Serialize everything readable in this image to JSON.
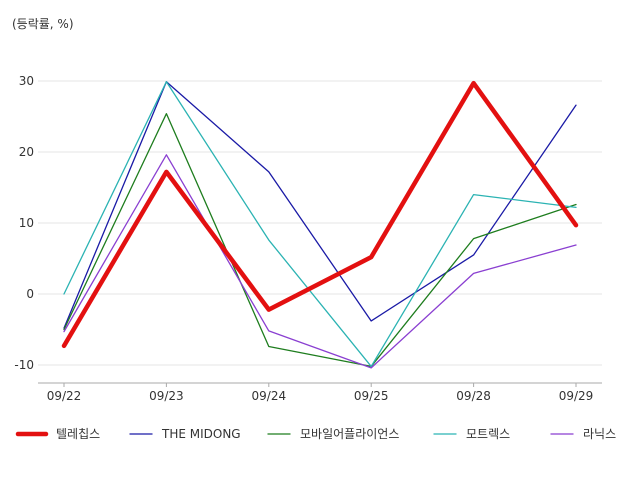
{
  "chart_data": {
    "type": "line",
    "unit_label": "(등락률, %)",
    "categories": [
      "09/22",
      "09/23",
      "09/24",
      "09/25",
      "09/28",
      "09/29"
    ],
    "ylim": [
      -10,
      30
    ],
    "yticks": [
      "30",
      "20",
      "10",
      "0",
      "-10"
    ],
    "grid": true,
    "legend_position": "bottom",
    "series": [
      {
        "name": "텔레칩스",
        "color": "#e31010",
        "values": [
          -7.3,
          17.2,
          -2.2,
          5.2,
          29.7,
          9.7
        ]
      },
      {
        "name": "THE MIDONG",
        "color": "#1a1aa6",
        "values": [
          -4.8,
          29.9,
          17.2,
          -3.8,
          5.5,
          26.6
        ]
      },
      {
        "name": "모바일어플라이언스",
        "color": "#1e7d1e",
        "values": [
          -5.0,
          25.4,
          -7.4,
          -10.2,
          7.8,
          12.6
        ]
      },
      {
        "name": "모트렉스",
        "color": "#2bb3b3",
        "values": [
          0.0,
          29.9,
          7.6,
          -10.2,
          14.0,
          12.2
        ]
      },
      {
        "name": "라닉스",
        "color": "#8a3fd1",
        "values": [
          -5.3,
          19.6,
          -5.2,
          -10.4,
          2.9,
          6.9
        ]
      }
    ]
  }
}
